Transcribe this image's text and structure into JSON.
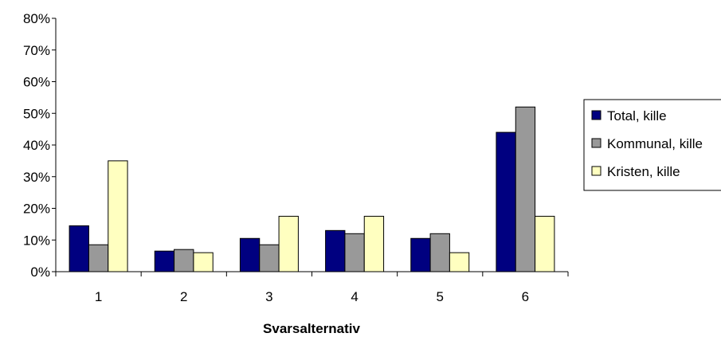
{
  "chart_data": {
    "type": "bar",
    "categories": [
      "1",
      "2",
      "3",
      "4",
      "5",
      "6"
    ],
    "series": [
      {
        "name": "Total, kille",
        "color": "#000080",
        "values": [
          14.5,
          6.5,
          10.5,
          13,
          10.5,
          44
        ]
      },
      {
        "name": "Kommunal, kille",
        "color": "#999999",
        "values": [
          8.5,
          7,
          8.5,
          12,
          12,
          52
        ]
      },
      {
        "name": "Kristen, kille",
        "color": "#ffffc0",
        "values": [
          35,
          6,
          17.5,
          17.5,
          6,
          17.5
        ]
      }
    ],
    "title": "",
    "xlabel": "Svarsalternativ",
    "ylabel": "",
    "ylim": [
      0,
      80
    ],
    "yticks": [
      "0%",
      "10%",
      "20%",
      "30%",
      "40%",
      "50%",
      "60%",
      "70%",
      "80%"
    ],
    "grid": false,
    "legend": "right"
  }
}
